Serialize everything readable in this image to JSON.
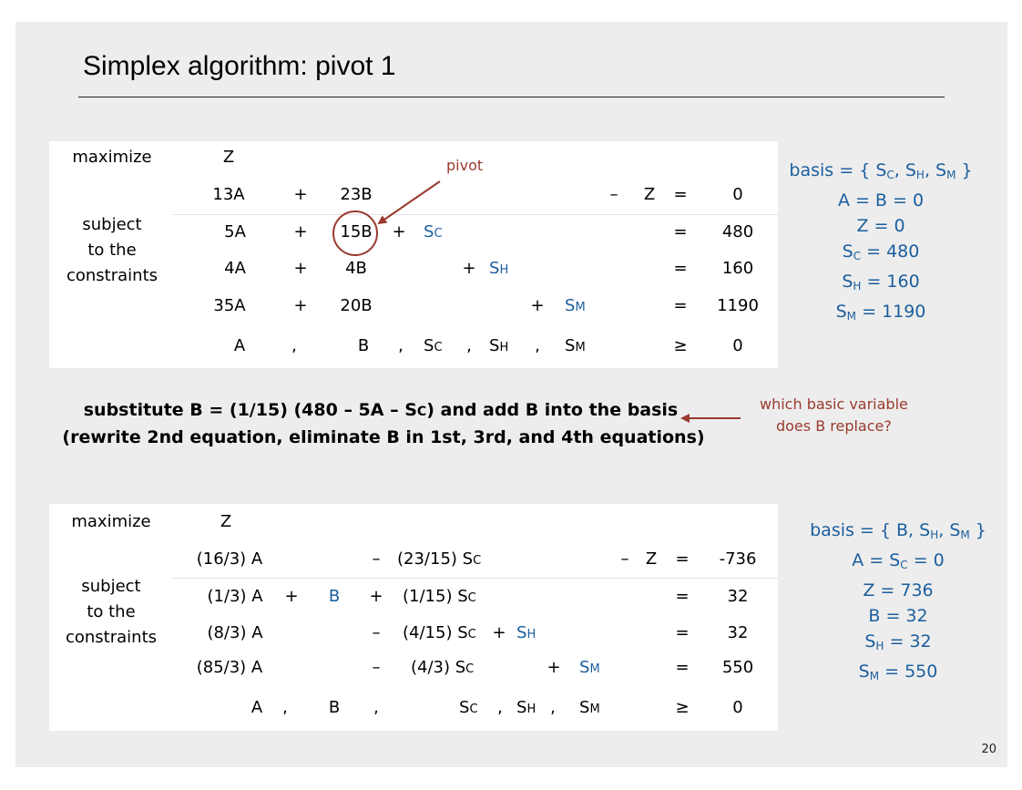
{
  "title": "Simplex algorithm: pivot 1",
  "labels": {
    "maximize": "maximize",
    "subject": "subject",
    "to_the": "to the",
    "constraints": "constraints"
  },
  "pivot_label": "pivot",
  "system1": {
    "z": "Z",
    "obj": {
      "a": "13A",
      "plus": "+",
      "b": "23B",
      "minus": "–",
      "z": "Z",
      "eq": "=",
      "rhs": "0"
    },
    "c1": {
      "a": "5A",
      "plus": "+",
      "b": "15B",
      "plus2": "+",
      "s": "S",
      "s_sub": "C",
      "eq": "=",
      "rhs": "480"
    },
    "c2": {
      "a": "4A",
      "plus": "+",
      "b": "4B",
      "plus2": "+",
      "s": "S",
      "s_sub": "H",
      "eq": "=",
      "rhs": "160"
    },
    "c3": {
      "a": "35A",
      "plus": "+",
      "b": "20B",
      "plus2": "+",
      "s": "S",
      "s_sub": "M",
      "eq": "=",
      "rhs": "1190"
    },
    "nn": {
      "a": "A",
      "comma": ",",
      "b": "B",
      "sc": "S",
      "sc_sub": "C",
      "sh": "S",
      "sh_sub": "H",
      "sm": "S",
      "sm_sub": "M",
      "ge": "≥",
      "rhs": "0"
    }
  },
  "basis1": {
    "line1_prefix": "basis = { S",
    "sub_c": "C",
    "sep1": ", S",
    "sub_h": "H",
    "sep2": ", S",
    "sub_m": "M",
    "line1_suffix": " }",
    "line2": "A = B = 0",
    "line3": "Z = 0",
    "line4_var": "S",
    "line4_sub": "C",
    "line4_val": " = 480",
    "line5_var": "S",
    "line5_sub": "H",
    "line5_val": " = 160",
    "line6_var": "S",
    "line6_sub": "M",
    "line6_val": " = 1190"
  },
  "substitute": {
    "line1": "substitute  B = (1/15) (480 – 5A – S",
    "line1_sub": "C",
    "line1_end": ") and add B into the basis",
    "line2": "(rewrite 2nd equation, eliminate B in 1st, 3rd, and 4th equations)"
  },
  "question": {
    "line1": "which basic variable",
    "line2": "does B replace?"
  },
  "system2": {
    "z": "Z",
    "obj": {
      "a": "(16/3) A",
      "minus": "–",
      "s": "(23/15) S",
      "s_sub": "C",
      "minus2": "–",
      "z": "Z",
      "eq": "=",
      "rhs": "-736"
    },
    "c1": {
      "a": "(1/3) A",
      "plus": "+",
      "b": "B",
      "plus2": "+",
      "s": "(1/15) S",
      "s_sub": "C",
      "eq": "=",
      "rhs": "32"
    },
    "c2": {
      "a": "(8/3) A",
      "minus": "–",
      "s": "(4/15) S",
      "s_sub": "C",
      "plus": "+",
      "sh": "S",
      "sh_sub": "H",
      "eq": "=",
      "rhs": "32"
    },
    "c3": {
      "a": "(85/3) A",
      "minus": "–",
      "s": "(4/3) S",
      "s_sub": "C",
      "plus": "+",
      "sm": "S",
      "sm_sub": "M",
      "eq": "=",
      "rhs": "550"
    },
    "nn": {
      "a": "A",
      "comma": ",",
      "b": "B",
      "sc": "S",
      "sc_sub": "C",
      "sh": "S",
      "sh_sub": "H",
      "sm": "S",
      "sm_sub": "M",
      "ge": "≥",
      "rhs": "0"
    }
  },
  "basis2": {
    "line1_prefix": "basis = { B, S",
    "sub_h": "H",
    "sep": ", S",
    "sub_m": "M",
    "line1_suffix": " }",
    "line2_a": "A = S",
    "line2_sub": "C",
    "line2_val": " = 0",
    "line3": "Z = 736",
    "line4": "B = 32",
    "line5_var": "S",
    "line5_sub": "H",
    "line5_val": " = 32",
    "line6_var": "S",
    "line6_sub": "M",
    "line6_val": " = 550"
  },
  "page_number": "20"
}
